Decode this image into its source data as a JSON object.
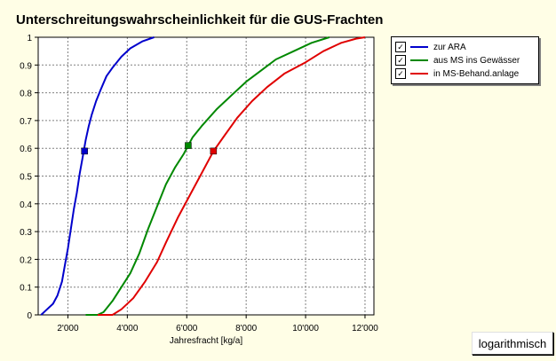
{
  "title": "Unterschreitungswahrscheinlichkeit für die GUS-Frachten",
  "button": {
    "label": "logarithmisch"
  },
  "colors": {
    "background": "#fffee6",
    "plot_background": "#ffffff",
    "grid": "#808080"
  },
  "legend": {
    "items": [
      {
        "label": "zur ARA",
        "color": "#0000cc",
        "checked": true
      },
      {
        "label": "aus MS ins Gewässer",
        "color": "#008800",
        "checked": true
      },
      {
        "label": "in MS-Behand.anlage",
        "color": "#e00000",
        "checked": true
      }
    ]
  },
  "chart_data": {
    "type": "line",
    "title": "Unterschreitungswahrscheinlichkeit für die GUS-Frachten",
    "xlabel": "Jahresfracht [kg/a]",
    "ylabel": "",
    "xlim": [
      1000,
      12300
    ],
    "ylim": [
      0,
      1
    ],
    "grid": true,
    "legend_position": "top-right",
    "xticks": [
      2000,
      4000,
      6000,
      8000,
      10000,
      12000
    ],
    "xtick_labels": [
      "2'000",
      "4'000",
      "6'000",
      "8'000",
      "10'000",
      "12'000"
    ],
    "yticks": [
      0,
      0.1,
      0.2,
      0.3,
      0.4,
      0.5,
      0.6,
      0.7,
      0.8,
      0.9,
      1
    ],
    "ytick_labels": [
      "0",
      "0.1",
      "0.2",
      "0.3",
      "0.4",
      "0.5",
      "0.6",
      "0.7",
      "0.8",
      "0.9",
      "1"
    ],
    "series": [
      {
        "name": "zur ARA",
        "color": "#0000cc",
        "x": [
          1100,
          1300,
          1500,
          1650,
          1800,
          1900,
          2000,
          2100,
          2200,
          2300,
          2400,
          2500,
          2600,
          2700,
          2800,
          2950,
          3100,
          3300,
          3500,
          3800,
          4100,
          4500,
          4900
        ],
        "y": [
          0,
          0.02,
          0.04,
          0.07,
          0.12,
          0.18,
          0.24,
          0.31,
          0.38,
          0.44,
          0.51,
          0.57,
          0.63,
          0.68,
          0.72,
          0.77,
          0.81,
          0.86,
          0.89,
          0.93,
          0.96,
          0.985,
          1
        ],
        "marker": {
          "x": 2560,
          "y": 0.59
        }
      },
      {
        "name": "aus MS ins Gewässer",
        "color": "#008800",
        "x": [
          2600,
          3000,
          3200,
          3500,
          3800,
          4100,
          4400,
          4700,
          5000,
          5300,
          5600,
          5900,
          6200,
          6500,
          7000,
          7500,
          8000,
          8500,
          9000,
          9600,
          10200,
          10800
        ],
        "y": [
          0,
          0,
          0.01,
          0.05,
          0.1,
          0.15,
          0.22,
          0.31,
          0.39,
          0.47,
          0.53,
          0.58,
          0.64,
          0.68,
          0.74,
          0.79,
          0.84,
          0.88,
          0.92,
          0.95,
          0.98,
          1
        ],
        "marker": {
          "x": 6050,
          "y": 0.61
        }
      },
      {
        "name": "in MS-Behand.anlage",
        "color": "#e00000",
        "x": [
          3000,
          3500,
          3800,
          4200,
          4600,
          5000,
          5300,
          5700,
          6100,
          6500,
          6900,
          7300,
          7700,
          8200,
          8700,
          9300,
          10000,
          10600,
          11200,
          11700,
          12000
        ],
        "y": [
          0,
          0,
          0.02,
          0.06,
          0.12,
          0.19,
          0.26,
          0.35,
          0.43,
          0.51,
          0.59,
          0.65,
          0.71,
          0.77,
          0.82,
          0.87,
          0.91,
          0.95,
          0.98,
          0.995,
          1
        ],
        "marker": {
          "x": 6900,
          "y": 0.59
        }
      }
    ]
  }
}
